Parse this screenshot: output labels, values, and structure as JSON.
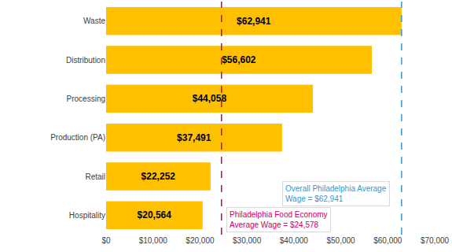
{
  "chart_data": {
    "type": "bar",
    "orientation": "horizontal",
    "categories": [
      "Waste",
      "Distribution",
      "Processing",
      "Production (PA)",
      "Retail",
      "Hospitality"
    ],
    "values": [
      62941,
      56602,
      44058,
      37491,
      22252,
      20564
    ],
    "value_labels": [
      "$62,941",
      "$56,602",
      "$44,058",
      "$37,491",
      "$22,252",
      "$20,564"
    ],
    "color": "#FFC000",
    "data_labels": true,
    "grid": false,
    "xlim": [
      0,
      70000
    ],
    "xticks": [
      {
        "value": 0,
        "label": "$0"
      },
      {
        "value": 10000,
        "label": "$10,000"
      },
      {
        "value": 20000,
        "label": "$20,000"
      },
      {
        "value": 30000,
        "label": "$30,000"
      },
      {
        "value": 40000,
        "label": "$40,000"
      },
      {
        "value": 50000,
        "label": "$50,000"
      },
      {
        "value": 60000,
        "label": "$60,000"
      },
      {
        "value": 70000,
        "label": "$70,000"
      }
    ],
    "annotations": [
      {
        "lines": [
          "Overall Philadelphia Average",
          "Wage = $62,941"
        ],
        "x": 62941,
        "color": "#3399CC",
        "line_style": "dash"
      },
      {
        "lines": [
          "Philadelphia Food Economy",
          "Average Wage = $24,578"
        ],
        "x": 24578,
        "color": "#CC0066",
        "line_style": "dash"
      }
    ]
  }
}
